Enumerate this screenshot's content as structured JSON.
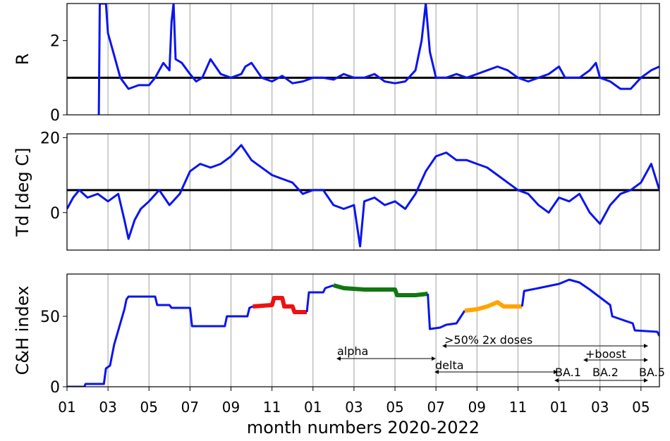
{
  "chart_data": [
    {
      "type": "line",
      "ylabel": "R",
      "xlim": [
        0,
        28.9
      ],
      "ylim": [
        0,
        3
      ],
      "yticks": [
        0,
        2
      ],
      "hline": 1,
      "color": "#0a14f0",
      "x": [
        1.55,
        1.6,
        1.9,
        2.0,
        2.3,
        2.6,
        3.0,
        3.5,
        4.0,
        4.3,
        4.7,
        5.0,
        5.1,
        5.2,
        5.3,
        5.6,
        6.0,
        6.3,
        6.6,
        7.0,
        7.5,
        8.0,
        8.5,
        8.7,
        9.0,
        9.5,
        10.0,
        10.5,
        11.0,
        11.5,
        12.0,
        12.5,
        13.0,
        13.5,
        14.0,
        14.5,
        15.0,
        15.5,
        16.0,
        16.5,
        17.0,
        17.3,
        17.5,
        17.7,
        18.0,
        18.5,
        19.0,
        19.5,
        20.0,
        20.5,
        21.0,
        21.5,
        22.0,
        22.5,
        23.0,
        23.5,
        24.0,
        24.3,
        25.0,
        25.5,
        25.8,
        26.0,
        26.5,
        27.0,
        27.5,
        28.0,
        28.5,
        28.9
      ],
      "values": [
        0,
        3,
        3,
        2.2,
        1.6,
        1.0,
        0.7,
        0.8,
        0.8,
        1.0,
        1.4,
        1.2,
        2.5,
        3,
        1.5,
        1.4,
        1.1,
        0.9,
        1.0,
        1.5,
        1.1,
        1.0,
        1.1,
        1.3,
        1.4,
        1.0,
        0.9,
        1.05,
        0.85,
        0.9,
        1.0,
        1.0,
        0.95,
        1.1,
        1.0,
        1.0,
        1.1,
        0.9,
        0.85,
        0.9,
        1.2,
        2.0,
        3.0,
        1.7,
        1.0,
        1.0,
        1.1,
        1.0,
        1.1,
        1.2,
        1.3,
        1.2,
        1.0,
        0.9,
        1.0,
        1.1,
        1.3,
        1.0,
        1.0,
        1.2,
        1.4,
        1.0,
        0.9,
        0.7,
        0.7,
        1.0,
        1.2,
        1.3
      ]
    },
    {
      "type": "line",
      "ylabel": "Td [deg C]",
      "xlim": [
        0,
        28.9
      ],
      "ylim": [
        -10,
        21
      ],
      "yticks": [
        0,
        20
      ],
      "hline": 6,
      "color": "#0a14f0",
      "x": [
        0,
        0.3,
        0.6,
        1.0,
        1.5,
        2.0,
        2.5,
        2.8,
        3.0,
        3.3,
        3.6,
        4.0,
        4.5,
        5.0,
        5.5,
        6.0,
        6.5,
        7.0,
        7.5,
        8.0,
        8.5,
        9.0,
        9.5,
        10.0,
        10.5,
        11.0,
        11.5,
        12.0,
        12.5,
        13.0,
        13.5,
        14.0,
        14.3,
        14.5,
        15.0,
        15.5,
        16.0,
        16.5,
        17.0,
        17.5,
        18.0,
        18.5,
        19.0,
        19.5,
        20.0,
        20.5,
        21.0,
        21.5,
        22.0,
        22.5,
        23.0,
        23.5,
        24.0,
        24.5,
        25.0,
        25.5,
        26.0,
        26.5,
        27.0,
        27.5,
        28.0,
        28.5,
        28.9
      ],
      "values": [
        1,
        4,
        6,
        4,
        5,
        3,
        5,
        -2,
        -7,
        -2,
        1,
        3,
        6,
        2,
        5,
        11,
        13,
        12,
        13,
        15,
        18,
        14,
        12,
        10,
        9,
        8,
        5,
        6,
        6,
        2,
        1,
        2,
        -9,
        3,
        4,
        2,
        3,
        1,
        5,
        11,
        15,
        16,
        14,
        14,
        13,
        12,
        10,
        8,
        6,
        5,
        2,
        0,
        4,
        3,
        5,
        0,
        -3,
        2,
        5,
        6,
        8,
        13,
        6
      ]
    },
    {
      "type": "line",
      "ylabel": "C&H index",
      "xlabel": "month numbers 2020-2022",
      "xlim": [
        0,
        28.9
      ],
      "ylim": [
        0,
        80
      ],
      "yticks": [
        0,
        50
      ],
      "xticks": [
        {
          "value": 0,
          "label": "01"
        },
        {
          "value": 2,
          "label": "03"
        },
        {
          "value": 4,
          "label": "05"
        },
        {
          "value": 6,
          "label": "07"
        },
        {
          "value": 8,
          "label": "09"
        },
        {
          "value": 10,
          "label": "11"
        },
        {
          "value": 12,
          "label": "01"
        },
        {
          "value": 14,
          "label": "03"
        },
        {
          "value": 16,
          "label": "05"
        },
        {
          "value": 18,
          "label": "07"
        },
        {
          "value": 20,
          "label": "09"
        },
        {
          "value": 22,
          "label": "11"
        },
        {
          "value": 24,
          "label": "01"
        },
        {
          "value": 26,
          "label": "03"
        },
        {
          "value": 28,
          "label": "05"
        }
      ],
      "series": [
        {
          "color": "#0a14f0",
          "x": [
            0,
            0.85,
            0.9,
            1.8,
            1.9,
            2.1,
            2.3,
            2.6,
            2.8,
            2.9,
            3.0,
            4.3,
            4.4,
            5.0,
            5.1,
            6.0,
            6.1,
            7.7,
            7.8,
            8.8,
            8.9,
            9.07
          ],
          "values": [
            0,
            0,
            2,
            2,
            13,
            15,
            30,
            45,
            55,
            62,
            64,
            64,
            58,
            58,
            56,
            56,
            43,
            43,
            50,
            50,
            56,
            57
          ]
        },
        {
          "color": "#ee1111",
          "x": [
            9.07,
            10.0,
            10.1,
            10.5,
            10.6,
            11.0,
            11.1,
            11.7
          ],
          "values": [
            57,
            58,
            63,
            63,
            57,
            57,
            53,
            53
          ]
        },
        {
          "color": "#0a14f0",
          "x": [
            11.7,
            11.8,
            12.5,
            12.6,
            13.0
          ],
          "values": [
            53,
            67,
            67,
            70,
            72
          ]
        },
        {
          "color": "#117711",
          "x": [
            13.0,
            13.5,
            14.5,
            16.0,
            16.1,
            17.0,
            17.6
          ],
          "values": [
            72,
            70,
            69,
            69,
            65,
            65,
            66
          ]
        },
        {
          "color": "#0a14f0",
          "x": [
            17.6,
            17.7,
            18.2,
            18.5,
            19.0,
            19.4
          ],
          "values": [
            66,
            41,
            42,
            44,
            45,
            54
          ]
        },
        {
          "color": "#ffa500",
          "x": [
            19.4,
            20.0,
            20.5,
            21.0,
            21.3,
            22.2
          ],
          "values": [
            54,
            55,
            57,
            60,
            57,
            57
          ]
        },
        {
          "color": "#0a14f0",
          "x": [
            22.2,
            22.3,
            23.0,
            24.0,
            24.5,
            25.0,
            25.5,
            26.5,
            26.6,
            27.6,
            27.7,
            28.8,
            28.9
          ],
          "values": [
            57,
            68,
            70,
            73,
            76,
            74,
            69,
            58,
            50,
            45,
            40,
            39,
            36
          ]
        }
      ],
      "annotations": [
        "alpha",
        "delta",
        ">50% 2x doses",
        "+boost",
        "BA.1",
        "BA.2",
        "BA.5"
      ]
    }
  ]
}
